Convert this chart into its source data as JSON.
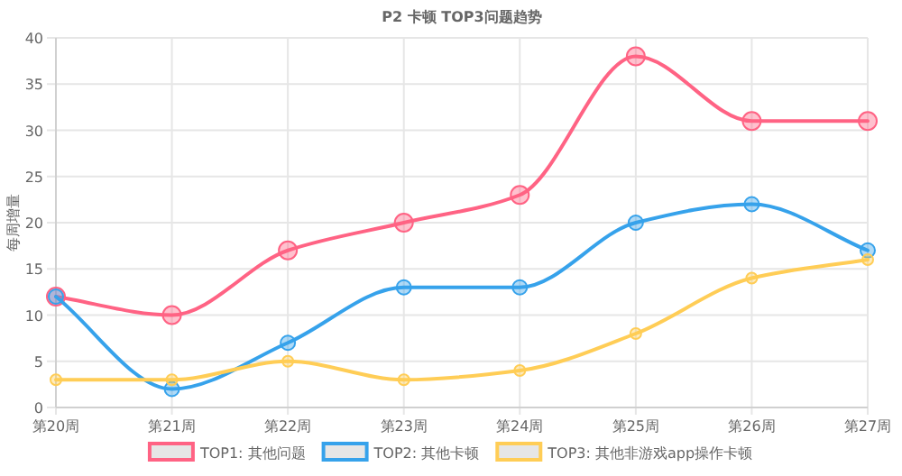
{
  "chart_data": {
    "type": "line",
    "title": "P2 卡顿 TOP3问题趋势",
    "ylabel": "每周增量",
    "categories": [
      "第20周",
      "第21周",
      "第22周",
      "第23周",
      "第24周",
      "第25周",
      "第26周",
      "第27周"
    ],
    "series": [
      {
        "name": "TOP1: 其他问题",
        "color": "#ff6384",
        "values": [
          12,
          10,
          17,
          20,
          23,
          38,
          31,
          31
        ]
      },
      {
        "name": "TOP2: 其他卡顿",
        "color": "#36a2eb",
        "values": [
          12,
          2,
          7,
          13,
          13,
          20,
          22,
          17
        ]
      },
      {
        "name": "TOP3: 其他非游戏app操作卡顿",
        "color": "#ffcd56",
        "values": [
          3,
          3,
          5,
          3,
          4,
          8,
          14,
          16
        ]
      }
    ],
    "ylim": [
      0,
      40
    ],
    "yticks": [
      0,
      5,
      10,
      15,
      20,
      25,
      30,
      35,
      40
    ],
    "grid": true,
    "legend": "bottom",
    "marker": "circle",
    "line_style": "solid"
  }
}
